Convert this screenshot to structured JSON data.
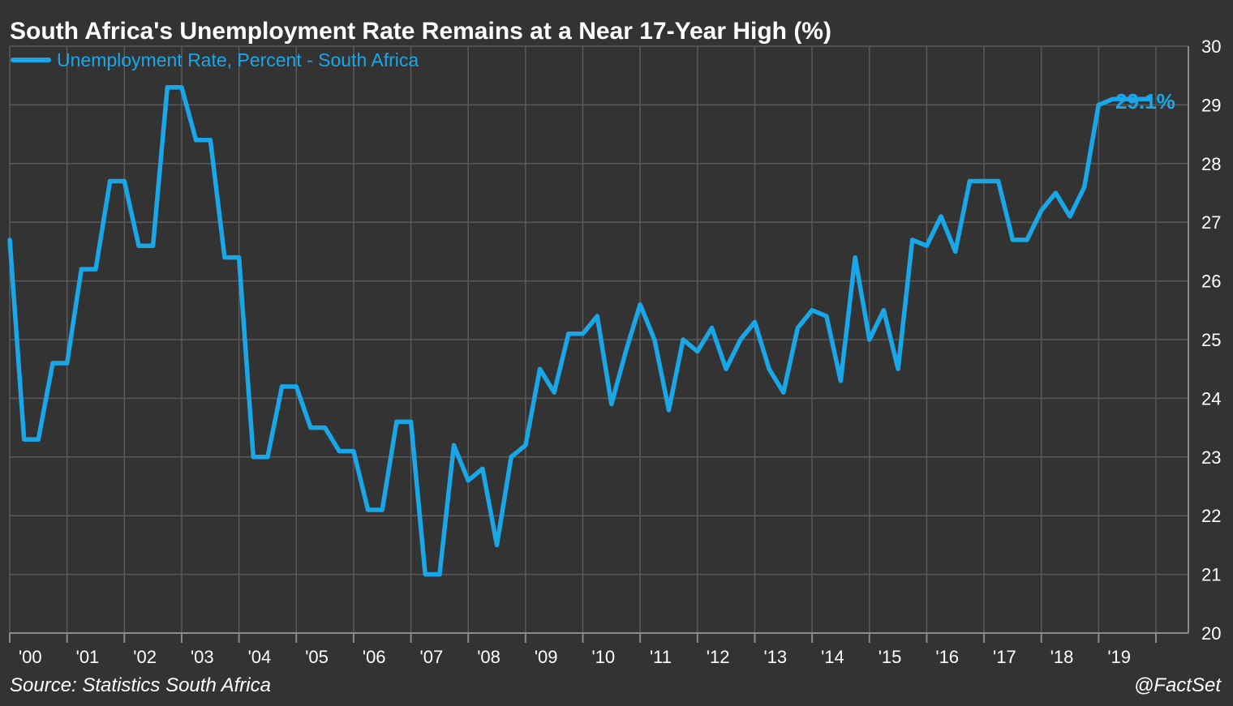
{
  "colors": {
    "background": "#333333",
    "line": "#1aa7e8",
    "text": "#ffffff",
    "grid": "#5a5a5a"
  },
  "footer": {
    "source": "Source: Statistics South Africa",
    "credit": "@FactSet"
  },
  "chart_data": {
    "type": "line",
    "title": "South Africa's Unemployment Rate Remains at a Near 17-Year High (%)",
    "legend": {
      "label": "Unemployment Rate, Percent - South Africa",
      "placement": "top-left"
    },
    "ylim": [
      20,
      30
    ],
    "yticks": [
      20,
      21,
      22,
      23,
      24,
      25,
      26,
      27,
      28,
      29,
      30
    ],
    "y_axis_side": "right",
    "grid": true,
    "xtick_labels": [
      "'00",
      "'01",
      "'02",
      "'03",
      "'04",
      "'05",
      "'06",
      "'07",
      "'08",
      "'09",
      "'10",
      "'11",
      "'12",
      "'13",
      "'14",
      "'15",
      "'16",
      "'17",
      "'18",
      "'19"
    ],
    "xlim": [
      2000.0,
      2020.0
    ],
    "annotation": {
      "text": "29.1%",
      "value": 29.1
    },
    "series": [
      {
        "name": "Unemployment Rate, Percent - South Africa",
        "x": [
          2000.0,
          2000.25,
          2000.5,
          2000.75,
          2001.0,
          2001.25,
          2001.5,
          2001.75,
          2002.0,
          2002.25,
          2002.5,
          2002.75,
          2003.0,
          2003.25,
          2003.5,
          2003.75,
          2004.0,
          2004.25,
          2004.5,
          2004.75,
          2005.0,
          2005.25,
          2005.5,
          2005.75,
          2006.0,
          2006.25,
          2006.5,
          2006.75,
          2007.0,
          2007.25,
          2007.5,
          2007.75,
          2008.0,
          2008.25,
          2008.5,
          2008.75,
          2009.0,
          2009.25,
          2009.5,
          2009.75,
          2010.0,
          2010.25,
          2010.5,
          2010.75,
          2011.0,
          2011.25,
          2011.5,
          2011.75,
          2012.0,
          2012.25,
          2012.5,
          2012.75,
          2013.0,
          2013.25,
          2013.5,
          2013.75,
          2014.0,
          2014.25,
          2014.5,
          2014.75,
          2015.0,
          2015.25,
          2015.5,
          2015.75,
          2016.0,
          2016.25,
          2016.5,
          2016.75,
          2017.0,
          2017.25,
          2017.5,
          2017.75,
          2018.0,
          2018.25,
          2018.5,
          2018.75,
          2019.0,
          2019.25,
          2019.5,
          2019.75,
          2019.9
        ],
        "values": [
          26.7,
          23.3,
          23.3,
          24.6,
          24.6,
          26.2,
          26.2,
          27.7,
          27.7,
          26.6,
          26.6,
          29.3,
          29.3,
          28.4,
          28.4,
          26.4,
          26.4,
          23.0,
          23.0,
          24.2,
          24.2,
          23.5,
          23.5,
          23.1,
          23.1,
          22.1,
          22.1,
          23.6,
          23.6,
          21.0,
          21.0,
          23.2,
          22.6,
          22.8,
          21.5,
          23.0,
          23.2,
          24.5,
          24.1,
          25.1,
          25.1,
          25.4,
          23.9,
          24.8,
          25.6,
          25.0,
          23.8,
          25.0,
          24.8,
          25.2,
          24.5,
          25.0,
          25.3,
          24.5,
          24.1,
          25.2,
          25.5,
          25.4,
          24.3,
          26.4,
          25.0,
          25.5,
          24.5,
          26.7,
          26.6,
          27.1,
          26.5,
          27.7,
          27.7,
          27.7,
          26.7,
          26.7,
          27.2,
          27.5,
          27.1,
          27.6,
          29.0,
          29.1,
          29.1,
          29.1,
          29.1
        ]
      }
    ]
  }
}
